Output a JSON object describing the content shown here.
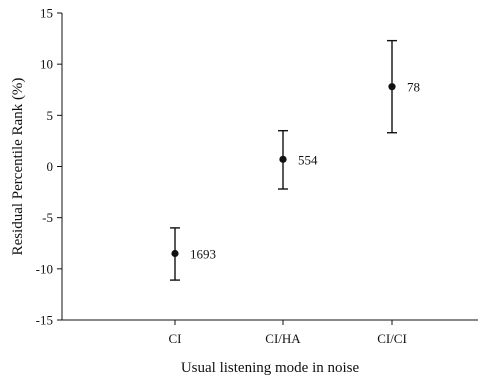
{
  "chart_data": {
    "type": "scatter",
    "title": "",
    "xlabel": "Usual listening mode in noise",
    "ylabel": "Residual Percentile Rank (%)",
    "categories": [
      "CI",
      "CI/HA",
      "CI/CI"
    ],
    "ylim": [
      -15,
      15
    ],
    "yticks": [
      -15,
      -10,
      -5,
      0,
      5,
      10,
      15
    ],
    "ytick_labels": [
      "-15",
      "-10",
      "-5",
      "0",
      "5",
      "10",
      "15"
    ],
    "grid": false,
    "legend": "none",
    "series": [
      {
        "values": [
          -8.5,
          0.7,
          7.8
        ],
        "error_low": [
          -11.1,
          -2.2,
          3.3
        ],
        "error_high": [
          -6.0,
          3.5,
          12.3
        ],
        "point_labels": [
          "1693",
          "554",
          "78"
        ]
      }
    ],
    "colors": {
      "marker": "#111111",
      "axis": "#111111"
    }
  }
}
